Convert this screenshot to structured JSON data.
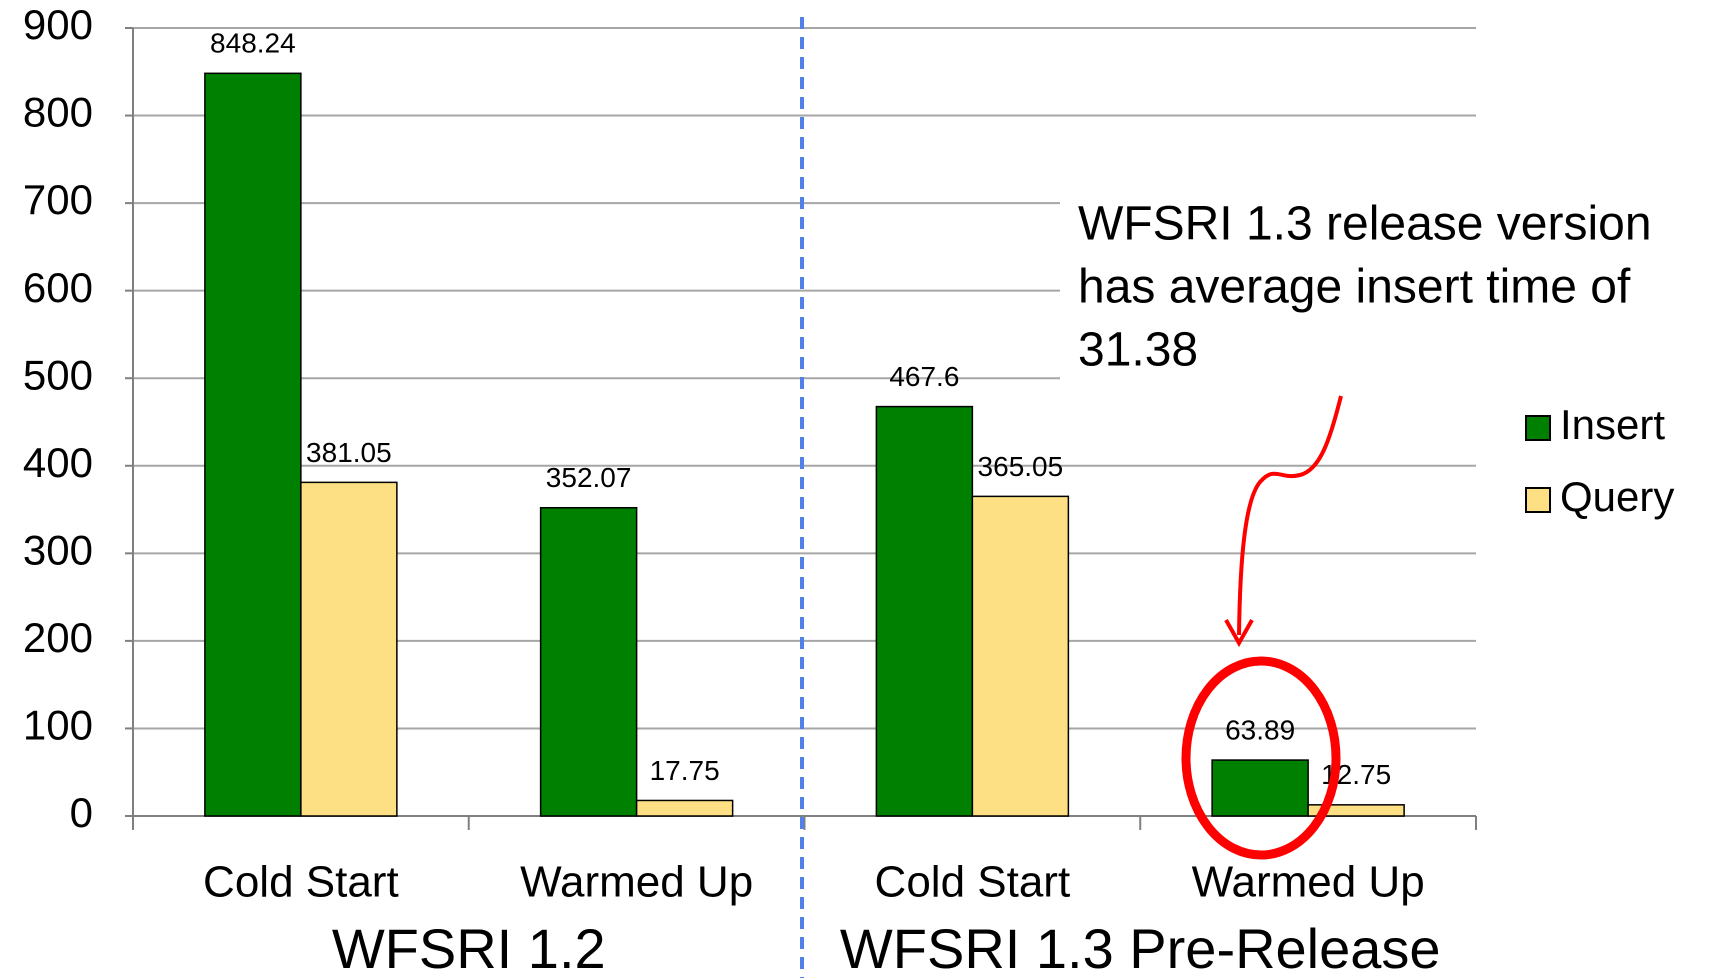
{
  "chart_data": {
    "type": "bar",
    "categories": [
      "Cold Start",
      "Warmed Up",
      "Cold Start",
      "Warmed Up"
    ],
    "group_labels": [
      "WFSRI 1.2",
      "WFSRI 1.3 Pre-Release"
    ],
    "series": [
      {
        "name": "Insert",
        "color": "#008000",
        "values": [
          848.24,
          352.07,
          467.6,
          63.89
        ]
      },
      {
        "name": "Query",
        "color": "#fde084",
        "values": [
          381.05,
          17.75,
          365.05,
          12.75
        ]
      }
    ],
    "ylim": [
      0,
      900
    ],
    "yticks": [
      0,
      100,
      200,
      300,
      400,
      500,
      600,
      700,
      800,
      900
    ],
    "grid": true,
    "legend": "right",
    "annotation": [
      "WFSRI 1.3 release version",
      "has average insert time of",
      "31.38"
    ]
  }
}
